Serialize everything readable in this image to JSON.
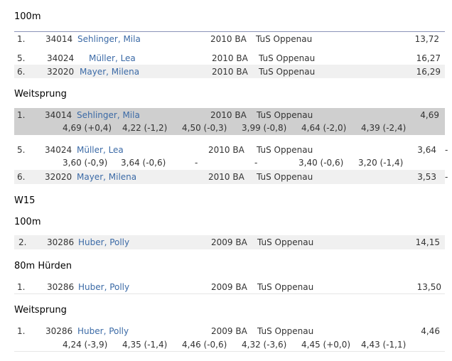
{
  "sections": {
    "h_100m_a": "100m",
    "h_weit_a": "Weitsprung",
    "h_w15": "W15",
    "h_100m_b": "100m",
    "h_80m": "80m Hürden",
    "h_weit_b": "Weitsprung"
  },
  "w14_100m": [
    {
      "place": "1.",
      "bib": "34014",
      "name": "Sehlinger, Mila",
      "year": "2010 BA",
      "club": "TuS Oppenau",
      "result": "13,72"
    },
    {
      "place": "5.",
      "bib": "34024",
      "name": "Müller, Lea",
      "year": "2010 BA",
      "club": "TuS Oppenau",
      "result": "16,27"
    },
    {
      "place": "6.",
      "bib": "32020",
      "name": "Mayer, Milena",
      "year": "2010 BA",
      "club": "TuS Oppenau",
      "result": "16,29"
    }
  ],
  "w14_weit": [
    {
      "place": "1.",
      "bib": "34014",
      "name": "Sehlinger, Mila",
      "year": "2010 BA",
      "club": "TuS Oppenau",
      "result": "4,69",
      "attempts": [
        "4,69 (+0,4)",
        "4,22  (-1,2)",
        "4,50  (-0,3)",
        "3,99  (-0,8)",
        "4,64  (-2,0)",
        "4,39  (-2,4)"
      ]
    },
    {
      "place": "5.",
      "bib": "34024",
      "name": "Müller, Lea",
      "year": "2010 BA",
      "club": "TuS Oppenau",
      "result": "3,64",
      "attempts": [
        "3,60  (-0,9)",
        "3,64  (-0,6)",
        "-",
        "-",
        "3,40  (-0,6)",
        "3,20  (-1,4)"
      ]
    },
    {
      "place": "6.",
      "bib": "32020",
      "name": "Mayer, Milena",
      "year": "2010 BA",
      "club": "TuS Oppenau",
      "result": "3,53"
    }
  ],
  "w15_100m": [
    {
      "place": "2.",
      "bib": "30286",
      "name": "Huber, Polly",
      "year": "2009 BA",
      "club": "TuS Oppenau",
      "result": "14,15"
    }
  ],
  "w15_80m": [
    {
      "place": "1.",
      "bib": "30286",
      "name": "Huber, Polly",
      "year": "2009 BA",
      "club": "TuS Oppenau",
      "result": "13,50"
    }
  ],
  "w15_weit": [
    {
      "place": "1.",
      "bib": "30286",
      "name": "Huber, Polly",
      "year": "2009 BA",
      "club": "TuS Oppenau",
      "result": "4,46",
      "attempts": [
        "4,24  (-3,9)",
        "4,35  (-1,4)",
        "4,46  (-0,6)",
        "4,32  (-3,6)",
        "4,45 (+0,0)",
        "4,43  (-1,1)"
      ]
    }
  ],
  "trailing_dash": "-"
}
